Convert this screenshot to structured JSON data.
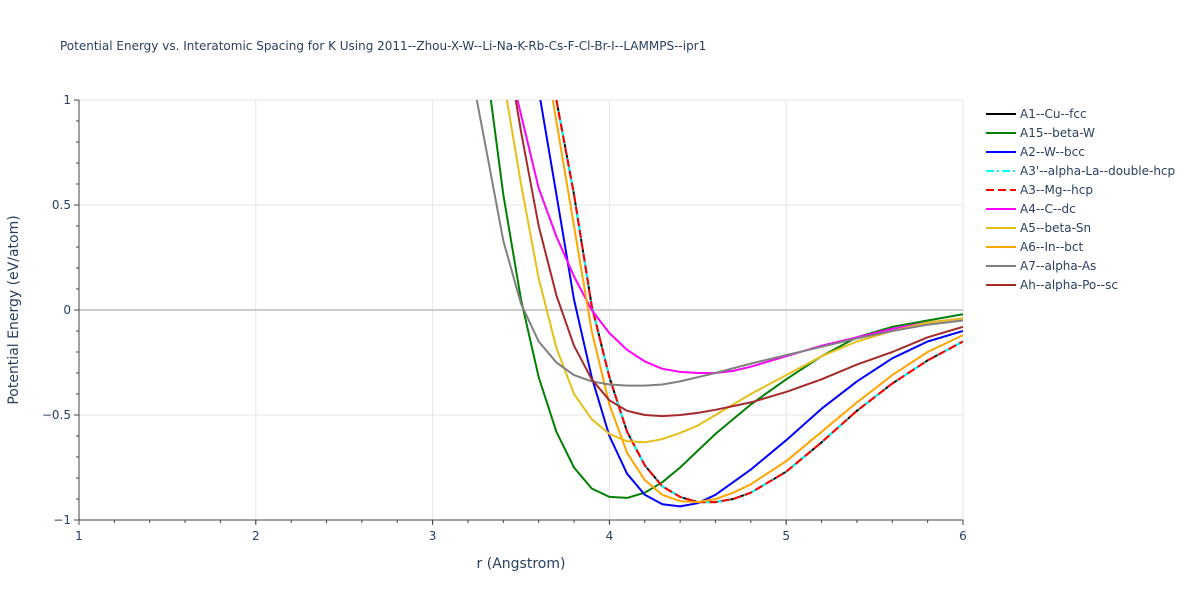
{
  "chart_data": {
    "type": "line",
    "title": "Potential Energy vs. Interatomic Spacing for K Using 2011--Zhou-X-W--Li-Na-K-Rb-Cs-F-Cl-Br-I--LAMMPS--ipr1",
    "xlabel": "r (Angstrom)",
    "ylabel": "Potential Energy (eV/atom)",
    "xlim": [
      1,
      6
    ],
    "ylim": [
      -1,
      1
    ],
    "x_ticks": [
      "1",
      "2",
      "3",
      "4",
      "5",
      "6"
    ],
    "y_ticks": [
      "−1",
      "−0.5",
      "0",
      "0.5",
      "1"
    ],
    "y_tick_values": [
      -1,
      -0.5,
      0,
      0.5,
      1
    ],
    "x_tick_values": [
      1,
      2,
      3,
      4,
      5,
      6
    ],
    "grid": true,
    "legend_position": "right",
    "series": [
      {
        "name": "A1--Cu--fcc",
        "color": "#000000",
        "dash": "solid",
        "x": [
          3.7,
          3.8,
          3.9,
          4.0,
          4.1,
          4.2,
          4.3,
          4.4,
          4.5,
          4.6,
          4.7,
          4.8,
          4.9,
          5.0,
          5.2,
          5.4,
          5.6,
          5.8,
          6.0
        ],
        "y": [
          1.0,
          0.55,
          0.02,
          -0.32,
          -0.58,
          -0.74,
          -0.84,
          -0.89,
          -0.915,
          -0.915,
          -0.9,
          -0.87,
          -0.82,
          -0.77,
          -0.63,
          -0.48,
          -0.35,
          -0.24,
          -0.15
        ]
      },
      {
        "name": "A15--beta-W",
        "color": "#008000",
        "dash": "solid",
        "x": [
          3.33,
          3.4,
          3.5,
          3.6,
          3.7,
          3.8,
          3.9,
          4.0,
          4.1,
          4.2,
          4.3,
          4.4,
          4.5,
          4.6,
          4.8,
          5.0,
          5.2,
          5.4,
          5.6,
          5.8,
          6.0
        ],
        "y": [
          1.0,
          0.55,
          0.05,
          -0.32,
          -0.58,
          -0.75,
          -0.85,
          -0.89,
          -0.895,
          -0.87,
          -0.82,
          -0.75,
          -0.67,
          -0.59,
          -0.45,
          -0.33,
          -0.22,
          -0.13,
          -0.08,
          -0.05,
          -0.02
        ]
      },
      {
        "name": "A2--W--bcc",
        "color": "#0000ff",
        "dash": "solid",
        "x": [
          3.61,
          3.7,
          3.8,
          3.9,
          4.0,
          4.1,
          4.2,
          4.3,
          4.4,
          4.5,
          4.6,
          4.8,
          5.0,
          5.2,
          5.4,
          5.6,
          5.8,
          6.0
        ],
        "y": [
          1.0,
          0.55,
          0.05,
          -0.32,
          -0.6,
          -0.78,
          -0.88,
          -0.925,
          -0.935,
          -0.92,
          -0.88,
          -0.76,
          -0.62,
          -0.47,
          -0.34,
          -0.23,
          -0.15,
          -0.1
        ]
      },
      {
        "name": "A3'--alpha-La--double-hcp",
        "color": "#00ffff",
        "dash": "dashdot",
        "x": [
          3.7,
          3.8,
          3.9,
          4.0,
          4.1,
          4.2,
          4.3,
          4.4,
          4.5,
          4.6,
          4.7,
          4.8,
          4.9,
          5.0,
          5.2,
          5.4,
          5.6,
          5.8,
          6.0
        ],
        "y": [
          1.0,
          0.55,
          0.02,
          -0.32,
          -0.58,
          -0.74,
          -0.84,
          -0.89,
          -0.915,
          -0.915,
          -0.9,
          -0.87,
          -0.82,
          -0.77,
          -0.63,
          -0.48,
          -0.35,
          -0.24,
          -0.15
        ]
      },
      {
        "name": "A3--Mg--hcp",
        "color": "#ff0000",
        "dash": "dash",
        "x": [
          3.7,
          3.8,
          3.9,
          4.0,
          4.1,
          4.2,
          4.3,
          4.4,
          4.5,
          4.6,
          4.7,
          4.8,
          4.9,
          5.0,
          5.2,
          5.4,
          5.6,
          5.8,
          6.0
        ],
        "y": [
          1.0,
          0.55,
          0.02,
          -0.32,
          -0.58,
          -0.74,
          -0.84,
          -0.89,
          -0.915,
          -0.915,
          -0.9,
          -0.87,
          -0.82,
          -0.77,
          -0.63,
          -0.48,
          -0.35,
          -0.24,
          -0.15
        ]
      },
      {
        "name": "A4--C--dc",
        "color": "#ff00ff",
        "dash": "solid",
        "x": [
          3.48,
          3.6,
          3.7,
          3.8,
          3.9,
          4.0,
          4.1,
          4.2,
          4.3,
          4.4,
          4.5,
          4.6,
          4.7,
          4.8,
          5.0,
          5.2,
          5.4,
          5.6,
          5.8,
          6.0
        ],
        "y": [
          1.0,
          0.58,
          0.35,
          0.16,
          0.0,
          -0.11,
          -0.19,
          -0.245,
          -0.28,
          -0.295,
          -0.3,
          -0.3,
          -0.29,
          -0.27,
          -0.22,
          -0.17,
          -0.13,
          -0.09,
          -0.06,
          -0.04
        ]
      },
      {
        "name": "A5--beta-Sn",
        "color": "#e6c01a",
        "dash": "solid",
        "x": [
          3.42,
          3.5,
          3.6,
          3.7,
          3.8,
          3.9,
          4.0,
          4.1,
          4.2,
          4.3,
          4.4,
          4.5,
          4.6,
          4.8,
          5.0,
          5.2,
          5.4,
          5.6,
          5.8,
          6.0
        ],
        "y": [
          1.0,
          0.6,
          0.15,
          -0.18,
          -0.4,
          -0.52,
          -0.59,
          -0.625,
          -0.63,
          -0.615,
          -0.585,
          -0.55,
          -0.5,
          -0.4,
          -0.31,
          -0.22,
          -0.15,
          -0.1,
          -0.06,
          -0.04
        ]
      },
      {
        "name": "A6--In--bct",
        "color": "#ffa500",
        "dash": "solid",
        "x": [
          3.68,
          3.8,
          3.9,
          4.0,
          4.1,
          4.2,
          4.3,
          4.4,
          4.5,
          4.6,
          4.7,
          4.8,
          5.0,
          5.2,
          5.4,
          5.6,
          5.8,
          6.0
        ],
        "y": [
          1.0,
          0.4,
          -0.1,
          -0.45,
          -0.68,
          -0.81,
          -0.88,
          -0.91,
          -0.915,
          -0.9,
          -0.87,
          -0.83,
          -0.72,
          -0.58,
          -0.44,
          -0.31,
          -0.2,
          -0.12
        ]
      },
      {
        "name": "A7--alpha-As",
        "color": "#808080",
        "dash": "solid",
        "x": [
          3.25,
          3.3,
          3.4,
          3.5,
          3.6,
          3.7,
          3.8,
          3.9,
          4.0,
          4.1,
          4.2,
          4.3,
          4.4,
          4.6,
          4.8,
          5.0,
          5.2,
          5.4,
          5.6,
          5.8,
          6.0
        ],
        "y": [
          1.0,
          0.78,
          0.33,
          0.03,
          -0.15,
          -0.25,
          -0.31,
          -0.34,
          -0.355,
          -0.36,
          -0.36,
          -0.355,
          -0.34,
          -0.3,
          -0.255,
          -0.215,
          -0.175,
          -0.135,
          -0.1,
          -0.07,
          -0.05
        ]
      },
      {
        "name": "Ah--alpha-Po--sc",
        "color": "#a52a2a",
        "dash": "solid",
        "x": [
          3.47,
          3.5,
          3.6,
          3.7,
          3.8,
          3.9,
          4.0,
          4.1,
          4.2,
          4.3,
          4.4,
          4.5,
          4.6,
          4.8,
          5.0,
          5.2,
          5.4,
          5.6,
          5.8,
          6.0
        ],
        "y": [
          1.0,
          0.85,
          0.4,
          0.07,
          -0.17,
          -0.33,
          -0.43,
          -0.48,
          -0.5,
          -0.505,
          -0.5,
          -0.49,
          -0.475,
          -0.44,
          -0.39,
          -0.33,
          -0.26,
          -0.2,
          -0.13,
          -0.08
        ]
      }
    ]
  }
}
